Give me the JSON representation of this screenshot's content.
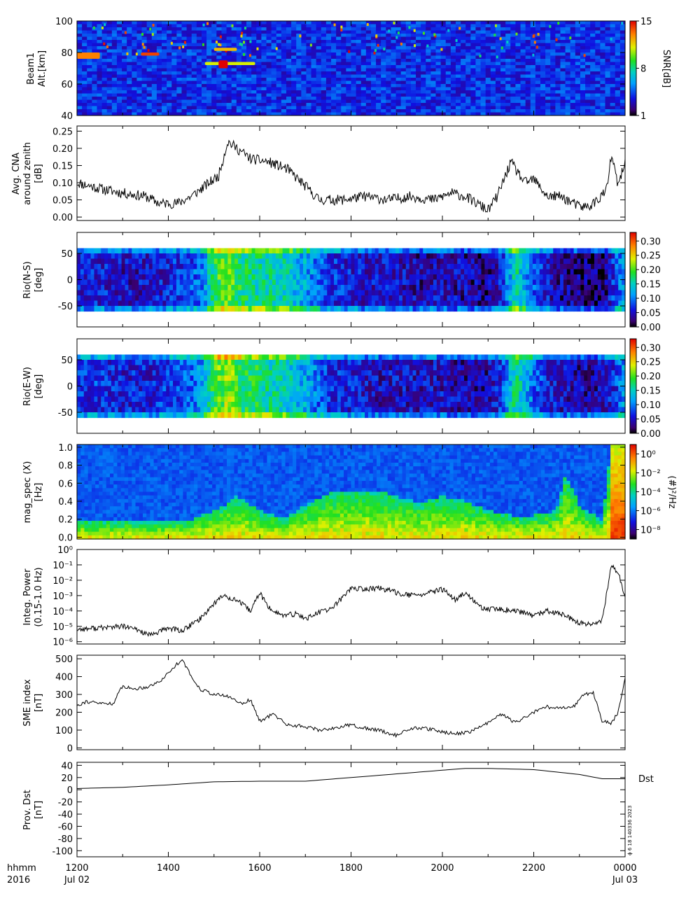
{
  "chart_data": {
    "type": "multi-panel-timeseries",
    "time_axis": {
      "header_lines": [
        "hhmm",
        "2016"
      ],
      "ticks": [
        "1200",
        "1400",
        "1600",
        "1800",
        "2000",
        "2200",
        "0000"
      ],
      "date_labels": [
        {
          "at": "1200",
          "text": "Jul 02"
        },
        {
          "at": "0000",
          "text": "Jul 03"
        }
      ],
      "range_hours": [
        12,
        24
      ]
    },
    "panels": [
      {
        "id": "beam1",
        "type": "heatmap",
        "ylabel": [
          "Beam1",
          "Alt.[km]"
        ],
        "yticks": [
          "100",
          "80",
          "60",
          "40"
        ],
        "ylim": [
          40,
          100
        ],
        "colorbar": {
          "label": "SNR[dB]",
          "ticks": [
            "15",
            "8",
            "1"
          ],
          "range": [
            1,
            15
          ],
          "palette": "rainbow"
        },
        "features": [
          {
            "t": [
              12.0,
              12.5
            ],
            "alt": [
              76,
              80
            ],
            "snr": 13
          },
          {
            "t": [
              13.4,
              13.8
            ],
            "alt": [
              78,
              80
            ],
            "snr": 14
          },
          {
            "t": [
              14.8,
              15.9
            ],
            "alt": [
              72,
              74
            ],
            "snr": 11
          },
          {
            "t": [
              15.1,
              15.3
            ],
            "alt": [
              70,
              75
            ],
            "snr": 15
          },
          {
            "t": [
              15.0,
              15.5
            ],
            "alt": [
              81,
              83
            ],
            "snr": 12
          }
        ]
      },
      {
        "id": "cna",
        "type": "line",
        "ylabel": [
          "Avg. CNA",
          "around zenith",
          "[dB]"
        ],
        "yticks": [
          "0.25",
          "0.20",
          "0.15",
          "0.10",
          "0.05",
          "0.00"
        ],
        "ylim": [
          0,
          0.25
        ],
        "series": [
          {
            "t": [
              12.0,
              12.3,
              12.6,
              13.0,
              13.5,
              13.8,
              14.2,
              14.5,
              14.8,
              15.1,
              15.3,
              15.5,
              15.8,
              16.2,
              16.6,
              17.0,
              17.3,
              17.8,
              18.3,
              18.8,
              19.3,
              19.8,
              20.2,
              20.5,
              21.0,
              21.2,
              21.5,
              21.8,
              22.0,
              22.3,
              22.6,
              23.0,
              23.2,
              23.4,
              23.6,
              23.7,
              23.85,
              24.0
            ],
            "value": [
              0.1,
              0.09,
              0.08,
              0.07,
              0.06,
              0.04,
              0.04,
              0.06,
              0.09,
              0.12,
              0.22,
              0.2,
              0.17,
              0.16,
              0.14,
              0.09,
              0.05,
              0.05,
              0.06,
              0.05,
              0.06,
              0.05,
              0.07,
              0.06,
              0.02,
              0.06,
              0.16,
              0.1,
              0.11,
              0.06,
              0.06,
              0.03,
              0.03,
              0.05,
              0.08,
              0.18,
              0.09,
              0.16
            ]
          }
        ]
      },
      {
        "id": "rio-ns",
        "type": "heatmap",
        "ylabel": [
          "Rio(N-S)",
          "[deg]"
        ],
        "yticks": [
          "50",
          "0",
          "-50"
        ],
        "ylim": [
          -90,
          90
        ],
        "colorbar": {
          "ticks": [
            "0.30",
            "0.25",
            "0.20",
            "0.15",
            "0.10",
            "0.05",
            "0.00"
          ],
          "range": [
            0,
            0.33
          ],
          "palette": "rainbow"
        },
        "profile": {
          "t": [
            12.0,
            12.5,
            13.0,
            13.5,
            14.0,
            14.5,
            14.8,
            15.0,
            15.3,
            15.6,
            16.0,
            16.5,
            17.0,
            17.5,
            18.0,
            18.5,
            19.0,
            19.5,
            20.0,
            20.5,
            21.0,
            21.3,
            21.6,
            22.0,
            22.5,
            23.0,
            23.5,
            23.8,
            24.0
          ],
          "value": [
            0.06,
            0.06,
            0.05,
            0.05,
            0.06,
            0.08,
            0.11,
            0.18,
            0.21,
            0.17,
            0.16,
            0.15,
            0.12,
            0.07,
            0.06,
            0.05,
            0.05,
            0.04,
            0.05,
            0.04,
            0.03,
            0.06,
            0.16,
            0.08,
            0.04,
            0.03,
            0.02,
            0.08,
            0.12
          ]
        },
        "elev_range": [
          -60,
          60
        ]
      },
      {
        "id": "rio-ew",
        "type": "heatmap",
        "ylabel": [
          "Rio(E-W)",
          "[deg]"
        ],
        "yticks": [
          "50",
          "0",
          "-50"
        ],
        "ylim": [
          -90,
          90
        ],
        "colorbar": {
          "ticks": [
            "0.30",
            "0.25",
            "0.20",
            "0.15",
            "0.10",
            "0.05",
            "0.00"
          ],
          "range": [
            0,
            0.33
          ],
          "palette": "rainbow"
        },
        "profile": {
          "t": [
            12.0,
            12.5,
            13.0,
            13.5,
            14.0,
            14.5,
            14.8,
            15.0,
            15.3,
            15.6,
            16.0,
            16.5,
            17.0,
            17.5,
            18.0,
            18.5,
            19.0,
            19.5,
            20.0,
            20.5,
            21.0,
            21.3,
            21.6,
            22.0,
            22.5,
            23.0,
            23.5,
            23.8,
            24.0
          ],
          "value": [
            0.07,
            0.07,
            0.06,
            0.06,
            0.07,
            0.09,
            0.12,
            0.19,
            0.22,
            0.18,
            0.17,
            0.15,
            0.12,
            0.07,
            0.06,
            0.05,
            0.05,
            0.05,
            0.05,
            0.04,
            0.04,
            0.07,
            0.17,
            0.09,
            0.05,
            0.04,
            0.04,
            0.07,
            0.12
          ]
        },
        "elev_range": [
          -60,
          60
        ]
      },
      {
        "id": "mag-spec",
        "type": "heatmap",
        "ylabel": [
          "mag_spec (X)",
          "[Hz]"
        ],
        "yticks": [
          "1.0",
          "0.8",
          "0.6",
          "0.4",
          "0.2",
          "0.0"
        ],
        "ylim": [
          0,
          1.0
        ],
        "colorbar": {
          "label": "(#)²/Hz",
          "ticks": [
            "10⁰",
            "10⁻²",
            "10⁻⁴",
            "10⁻⁶",
            "10⁻⁸"
          ],
          "range_log10": [
            -9,
            1
          ],
          "palette": "rainbow"
        },
        "activity_ceiling_hz": {
          "t": [
            12.0,
            13.0,
            14.0,
            14.5,
            15.0,
            15.2,
            15.5,
            16.0,
            16.5,
            17.0,
            17.5,
            18.0,
            18.5,
            19.0,
            19.5,
            20.0,
            20.5,
            21.0,
            21.5,
            22.0,
            22.5,
            22.7,
            23.0,
            23.5,
            23.7,
            24.0
          ],
          "value": [
            0.2,
            0.18,
            0.18,
            0.2,
            0.3,
            0.35,
            0.45,
            0.3,
            0.22,
            0.35,
            0.48,
            0.5,
            0.52,
            0.45,
            0.38,
            0.45,
            0.4,
            0.3,
            0.25,
            0.25,
            0.3,
            0.7,
            0.35,
            0.2,
            1.0,
            1.0
          ]
        }
      },
      {
        "id": "integ-power",
        "type": "line",
        "yscale": "log",
        "ylabel": [
          "Integ. Power",
          "(0.15-1.0 Hz)"
        ],
        "yticks": [
          "10⁰",
          "10⁻¹",
          "10⁻²",
          "10⁻³",
          "10⁻⁴",
          "10⁻⁵",
          "10⁻⁶"
        ],
        "ylim_log10": [
          -6,
          0
        ],
        "series": [
          {
            "t": [
              12.0,
              12.5,
              13.0,
              13.3,
              13.6,
              14.0,
              14.3,
              14.7,
              15.0,
              15.2,
              15.5,
              15.8,
              16.0,
              16.2,
              16.5,
              16.8,
              17.0,
              17.3,
              17.6,
              18.0,
              18.3,
              18.6,
              19.0,
              19.3,
              19.6,
              20.0,
              20.3,
              20.5,
              20.8,
              21.0,
              21.3,
              21.6,
              22.0,
              22.3,
              22.6,
              23.0,
              23.3,
              23.5,
              23.7,
              23.85,
              24.0
            ],
            "value_log10": [
              -5.2,
              -5.1,
              -5.0,
              -5.2,
              -5.6,
              -5.1,
              -5.3,
              -4.5,
              -3.5,
              -3.0,
              -3.3,
              -4.0,
              -2.8,
              -3.8,
              -4.3,
              -4.2,
              -4.5,
              -4.1,
              -3.8,
              -2.5,
              -2.6,
              -2.5,
              -2.8,
              -3.0,
              -2.9,
              -2.6,
              -3.3,
              -2.8,
              -3.7,
              -3.9,
              -3.9,
              -4.0,
              -4.3,
              -4.0,
              -4.2,
              -4.8,
              -4.9,
              -4.6,
              -1.0,
              -1.5,
              -3.2
            ]
          }
        ]
      },
      {
        "id": "sme",
        "type": "line",
        "ylabel": [
          "SME index",
          "[nT]"
        ],
        "yticks": [
          "500",
          "400",
          "300",
          "200",
          "100",
          "0"
        ],
        "ylim": [
          0,
          500
        ],
        "series": [
          {
            "t": [
              12.0,
              12.2,
              12.5,
              12.8,
              13.0,
              13.2,
              13.5,
              13.8,
              14.0,
              14.3,
              14.5,
              14.7,
              15.0,
              15.3,
              15.6,
              15.8,
              16.0,
              16.3,
              16.6,
              17.0,
              17.3,
              17.6,
              18.0,
              18.3,
              18.6,
              19.0,
              19.3,
              19.6,
              20.0,
              20.3,
              20.6,
              21.0,
              21.3,
              21.6,
              22.0,
              22.3,
              22.6,
              22.9,
              23.1,
              23.3,
              23.5,
              23.7,
              23.85,
              24.0
            ],
            "value": [
              240,
              260,
              250,
              250,
              350,
              330,
              340,
              370,
              420,
              500,
              400,
              330,
              300,
              290,
              250,
              270,
              150,
              190,
              130,
              120,
              100,
              110,
              130,
              110,
              100,
              70,
              110,
              110,
              90,
              80,
              90,
              140,
              190,
              140,
              200,
              230,
              220,
              240,
              300,
              310,
              150,
              140,
              200,
              390
            ]
          }
        ]
      },
      {
        "id": "dst",
        "type": "line",
        "ylabel": [
          "Prov. Dst",
          "[nT]"
        ],
        "yticks": [
          "40",
          "20",
          "0",
          "-20",
          "-40",
          "-60",
          "-80",
          "-100"
        ],
        "ylim": [
          -110,
          45
        ],
        "legend": "Dst",
        "footnote": "ϕ 6 18 140336 2023",
        "series": [
          {
            "t": [
              12.0,
              13.0,
              14.0,
              15.0,
              16.0,
              17.0,
              18.0,
              19.0,
              20.0,
              20.5,
              21.0,
              22.0,
              23.0,
              23.5,
              24.0
            ],
            "value": [
              2,
              4,
              8,
              13,
              14,
              14,
              20,
              26,
              32,
              35,
              35,
              33,
              25,
              18,
              18
            ]
          }
        ]
      }
    ]
  }
}
